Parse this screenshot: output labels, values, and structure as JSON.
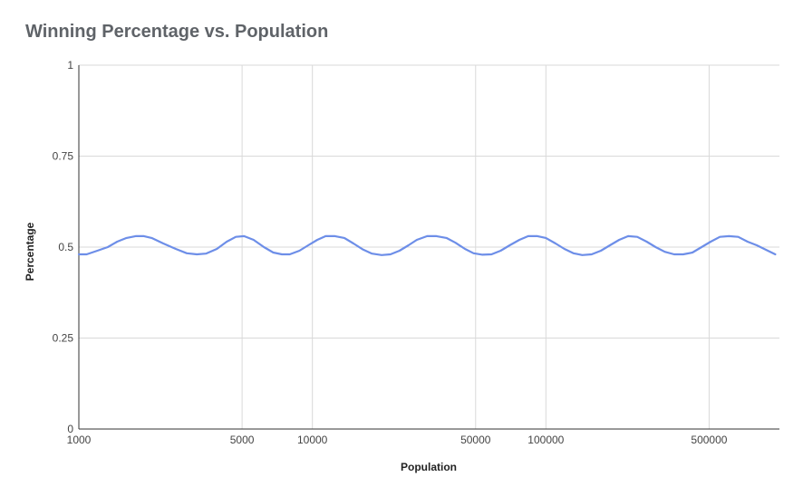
{
  "chart_data": {
    "type": "line",
    "title": "Winning Percentage vs. Population",
    "xlabel": "Population",
    "ylabel": "Percentage",
    "x_scale": "log",
    "xlim": [
      1000,
      1000000
    ],
    "ylim": [
      0,
      1
    ],
    "x_ticks": [
      1000,
      5000,
      10000,
      50000,
      100000,
      500000
    ],
    "y_ticks": [
      0,
      0.25,
      0.5,
      0.75,
      1
    ],
    "grid": true,
    "series_color": "#6d8ee8",
    "series": [
      {
        "x": [
          1000,
          1080,
          1200,
          1330,
          1460,
          1600,
          1750,
          1900,
          2050,
          2300,
          2600,
          2900,
          3200,
          3500,
          3900,
          4300,
          4700,
          5100,
          5600,
          6200,
          6800,
          7400,
          8000,
          8800,
          9600,
          10500,
          11400,
          12500,
          13700,
          15000,
          16500,
          18000,
          19800,
          21600,
          23600,
          25800,
          28000,
          31000,
          34000,
          37500,
          41000,
          45000,
          49000,
          53500,
          58500,
          64000,
          70000,
          77000,
          84000,
          92000,
          100000,
          110000,
          120000,
          131000,
          143000,
          157000,
          172000,
          188000,
          206000,
          225000,
          246000,
          270000,
          295000,
          323000,
          354000,
          387000,
          424000,
          464000,
          508000,
          556000,
          608000,
          666000,
          730000,
          800000,
          880000,
          960000
        ],
        "y": [
          0.48,
          0.48,
          0.49,
          0.5,
          0.515,
          0.525,
          0.53,
          0.53,
          0.525,
          0.51,
          0.495,
          0.483,
          0.48,
          0.482,
          0.495,
          0.515,
          0.528,
          0.53,
          0.52,
          0.5,
          0.485,
          0.48,
          0.48,
          0.49,
          0.505,
          0.52,
          0.53,
          0.53,
          0.525,
          0.51,
          0.493,
          0.482,
          0.478,
          0.48,
          0.49,
          0.505,
          0.52,
          0.53,
          0.53,
          0.525,
          0.512,
          0.495,
          0.483,
          0.479,
          0.48,
          0.49,
          0.505,
          0.52,
          0.53,
          0.53,
          0.525,
          0.51,
          0.495,
          0.483,
          0.478,
          0.48,
          0.49,
          0.505,
          0.52,
          0.53,
          0.528,
          0.515,
          0.5,
          0.487,
          0.48,
          0.48,
          0.485,
          0.5,
          0.515,
          0.528,
          0.53,
          0.528,
          0.515,
          0.505,
          0.492,
          0.48
        ]
      }
    ]
  }
}
